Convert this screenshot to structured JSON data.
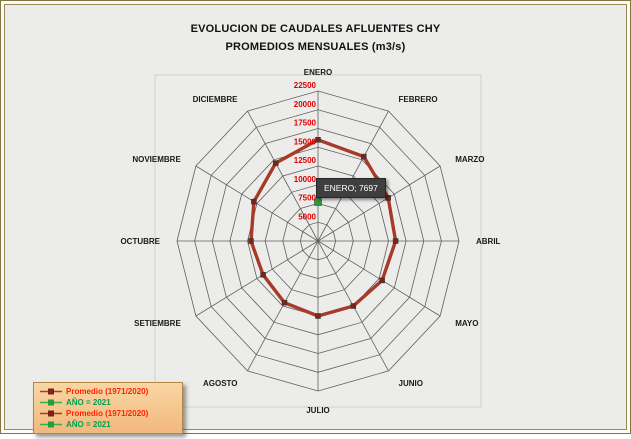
{
  "title": {
    "line1": "EVOLUCION DE CAUDALES AFLUENTES CHY",
    "line2": "PROMEDIOS MENSUALES (m3/s)"
  },
  "tooltip": {
    "text": "ENERO; 7697"
  },
  "legend": {
    "items": [
      {
        "label": "Promedio (1971/2020)",
        "text_color": "#ff2200",
        "line_color": "#b03a2a",
        "marker_color": "#7b241c"
      },
      {
        "label": "AÑO = 2021",
        "text_color": "#00a050",
        "line_color": "#33b24a",
        "marker_color": "#2a9a3f"
      },
      {
        "label": "Promedio (1971/2020)",
        "text_color": "#ff2200",
        "line_color": "#b03a2a",
        "marker_color": "#7b241c"
      },
      {
        "label": "AÑO = 2021",
        "text_color": "#00a050",
        "line_color": "#33b24a",
        "marker_color": "#2a9a3f"
      }
    ]
  },
  "chart_data": {
    "type": "radar",
    "title": "EVOLUCION DE CAUDALES AFLUENTES CHY PROMEDIOS MENSUALES (m3/s)",
    "categories": [
      "ENERO",
      "FEBRERO",
      "MARZO",
      "ABRIL",
      "MAYO",
      "JUNIO",
      "JULIO",
      "AGOSTO",
      "SETIEMBRE",
      "OCTUBRE",
      "NOVIEMBRE",
      "DICIEMBRE"
    ],
    "series": [
      {
        "name": "Promedio (1971/2020)",
        "color": "#a83a2a",
        "marker_color": "#7b241c",
        "marker_size": 5,
        "line_width": 3.4,
        "values": [
          16000,
          15500,
          14000,
          13500,
          13000,
          12500,
          12500,
          12000,
          11500,
          12000,
          13000,
          14500
        ]
      },
      {
        "name": "AÑO = 2021",
        "color": "#33b24a",
        "marker_color": "#2a9a3f",
        "marker_size": 7,
        "line_width": 2,
        "values": [
          7697,
          null,
          null,
          null,
          null,
          null,
          null,
          null,
          null,
          null,
          null,
          null
        ]
      }
    ],
    "radial_axis": {
      "min": 2500,
      "max": 22500,
      "ticks": [
        5000,
        7500,
        10000,
        12500,
        15000,
        17500,
        20000,
        22500
      ],
      "tick_color": "#dd0000"
    },
    "grid": true,
    "legend_position": "bottom-left",
    "annotation": {
      "series": "AÑO = 2021",
      "category": "ENERO",
      "value": 7697
    }
  }
}
